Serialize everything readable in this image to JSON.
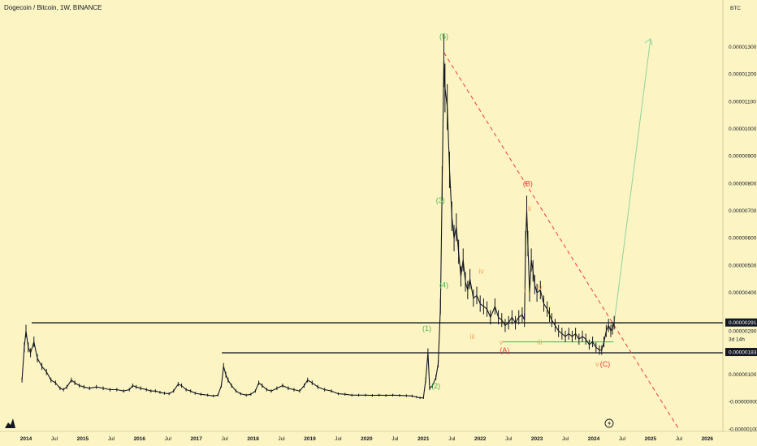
{
  "header": {
    "title": "Dogecoin / Bitcoin, 1W, BINANCE",
    "scale_label": "BTC"
  },
  "colors": {
    "background": "#fcf5c3",
    "candle": "#131722",
    "green": "#4caf50",
    "green_light": "#8fd19e",
    "red": "#ef3b3b",
    "orange": "#f4a261"
  },
  "chart_data": {
    "type": "line",
    "title": "Dogecoin / Bitcoin, 1W, BINANCE",
    "ylabel": "BTC",
    "ylim": [
      -1e-06,
      1.38e-05
    ],
    "y_ticks": [
      "0.00001300",
      "0.00001200",
      "0.00001100",
      "0.00001000",
      "0.00000900",
      "0.00000800",
      "0.00000700",
      "0.00000600",
      "0.00000500",
      "0.00000400",
      "0.00000290",
      "0.00000100",
      "-0.00000000",
      "-0.00000100"
    ],
    "x_ticks": [
      {
        "label": "2014",
        "t": 2014.0,
        "bold": true
      },
      {
        "label": "Jul",
        "t": 2014.5,
        "bold": false
      },
      {
        "label": "2015",
        "t": 2015.0,
        "bold": true
      },
      {
        "label": "Jul",
        "t": 2015.5,
        "bold": false
      },
      {
        "label": "2016",
        "t": 2016.0,
        "bold": true
      },
      {
        "label": "Jul",
        "t": 2016.5,
        "bold": false
      },
      {
        "label": "2017",
        "t": 2017.0,
        "bold": true
      },
      {
        "label": "Jul",
        "t": 2017.5,
        "bold": false
      },
      {
        "label": "2018",
        "t": 2018.0,
        "bold": true
      },
      {
        "label": "Jul",
        "t": 2018.5,
        "bold": false
      },
      {
        "label": "2019",
        "t": 2019.0,
        "bold": true
      },
      {
        "label": "Jul",
        "t": 2019.5,
        "bold": false
      },
      {
        "label": "2020",
        "t": 2020.0,
        "bold": true
      },
      {
        "label": "Jul",
        "t": 2020.5,
        "bold": false
      },
      {
        "label": "2021",
        "t": 2021.0,
        "bold": true
      },
      {
        "label": "Jul",
        "t": 2021.5,
        "bold": false
      },
      {
        "label": "2022",
        "t": 2022.0,
        "bold": true
      },
      {
        "label": "Jul",
        "t": 2022.5,
        "bold": false
      },
      {
        "label": "2023",
        "t": 2023.0,
        "bold": true
      },
      {
        "label": "Jul",
        "t": 2023.5,
        "bold": false
      },
      {
        "label": "2024",
        "t": 2024.0,
        "bold": true
      },
      {
        "label": "Jul",
        "t": 2024.5,
        "bold": false
      },
      {
        "label": "2025",
        "t": 2025.0,
        "bold": true
      },
      {
        "label": "Jul",
        "t": 2025.5,
        "bold": false
      },
      {
        "label": "2026",
        "t": 2026.0,
        "bold": true
      }
    ],
    "series": [
      {
        "points": [
          [
            2013.93,
            8e-07
          ],
          [
            2013.97,
            2e-06
          ],
          [
            2014.0,
            2.6e-06
          ],
          [
            2014.04,
            2e-06
          ],
          [
            2014.08,
            1.8e-06
          ],
          [
            2014.14,
            2.2e-06
          ],
          [
            2014.2,
            1.6e-06
          ],
          [
            2014.28,
            1.3e-06
          ],
          [
            2014.36,
            1.1e-06
          ],
          [
            2014.44,
            8e-07
          ],
          [
            2014.52,
            7e-07
          ],
          [
            2014.6,
            5e-07
          ],
          [
            2014.66,
            4.5e-07
          ],
          [
            2014.72,
            5.5e-07
          ],
          [
            2014.8,
            8e-07
          ],
          [
            2014.86,
            7e-07
          ],
          [
            2014.94,
            6e-07
          ],
          [
            2015.02,
            5.5e-07
          ],
          [
            2015.12,
            5e-07
          ],
          [
            2015.24,
            5.5e-07
          ],
          [
            2015.36,
            5e-07
          ],
          [
            2015.48,
            4.5e-07
          ],
          [
            2015.6,
            4.5e-07
          ],
          [
            2015.72,
            4e-07
          ],
          [
            2015.82,
            4.5e-07
          ],
          [
            2015.88,
            6e-07
          ],
          [
            2015.94,
            5.5e-07
          ],
          [
            2016.02,
            5e-07
          ],
          [
            2016.12,
            4.5e-07
          ],
          [
            2016.2,
            4e-07
          ],
          [
            2016.28,
            4e-07
          ],
          [
            2016.36,
            3.5e-07
          ],
          [
            2016.44,
            3.2e-07
          ],
          [
            2016.52,
            3e-07
          ],
          [
            2016.6,
            4e-07
          ],
          [
            2016.68,
            6.5e-07
          ],
          [
            2016.74,
            6e-07
          ],
          [
            2016.82,
            4.5e-07
          ],
          [
            2016.9,
            4e-07
          ],
          [
            2016.98,
            3.2e-07
          ],
          [
            2017.08,
            2.8e-07
          ],
          [
            2017.2,
            2.5e-07
          ],
          [
            2017.3,
            2.2e-07
          ],
          [
            2017.38,
            2.5e-07
          ],
          [
            2017.44,
            6e-07
          ],
          [
            2017.48,
            1.3e-06
          ],
          [
            2017.52,
            1e-06
          ],
          [
            2017.56,
            8e-07
          ],
          [
            2017.62,
            6e-07
          ],
          [
            2017.7,
            4e-07
          ],
          [
            2017.78,
            3e-07
          ],
          [
            2017.88,
            2.5e-07
          ],
          [
            2017.96,
            2.8e-07
          ],
          [
            2018.04,
            4e-07
          ],
          [
            2018.1,
            7e-07
          ],
          [
            2018.16,
            6e-07
          ],
          [
            2018.24,
            4.5e-07
          ],
          [
            2018.32,
            4e-07
          ],
          [
            2018.42,
            5e-07
          ],
          [
            2018.52,
            6e-07
          ],
          [
            2018.62,
            5e-07
          ],
          [
            2018.72,
            4.5e-07
          ],
          [
            2018.82,
            4e-07
          ],
          [
            2018.9,
            6e-07
          ],
          [
            2018.96,
            8e-07
          ],
          [
            2019.04,
            7e-07
          ],
          [
            2019.14,
            5.5e-07
          ],
          [
            2019.26,
            4.5e-07
          ],
          [
            2019.38,
            4e-07
          ],
          [
            2019.5,
            3e-07
          ],
          [
            2019.62,
            2.8e-07
          ],
          [
            2019.74,
            2.5e-07
          ],
          [
            2019.86,
            2.5e-07
          ],
          [
            2019.98,
            2.5e-07
          ],
          [
            2020.1,
            2.4e-07
          ],
          [
            2020.22,
            2.5e-07
          ],
          [
            2020.34,
            2.4e-07
          ],
          [
            2020.46,
            2.5e-07
          ],
          [
            2020.58,
            2.4e-07
          ],
          [
            2020.7,
            2.3e-07
          ],
          [
            2020.8,
            2.2e-07
          ],
          [
            2020.88,
            1.8e-07
          ],
          [
            2020.94,
            1.5e-07
          ],
          [
            2021.0,
            1.5e-07
          ],
          [
            2021.04,
            8e-07
          ],
          [
            2021.08,
            1.8e-06
          ],
          [
            2021.11,
            5e-07
          ],
          [
            2021.16,
            6e-07
          ],
          [
            2021.22,
            9e-07
          ],
          [
            2021.26,
            1.4e-06
          ],
          [
            2021.3,
            3.5e-06
          ],
          [
            2021.33,
            8e-06
          ],
          [
            2021.36,
            1.25e-05
          ],
          [
            2021.38,
            1.15e-05
          ],
          [
            2021.42,
            1.08e-05
          ],
          [
            2021.46,
            8.5e-06
          ],
          [
            2021.5,
            6.8e-06
          ],
          [
            2021.54,
            6e-06
          ],
          [
            2021.58,
            6.4e-06
          ],
          [
            2021.62,
            5.5e-06
          ],
          [
            2021.66,
            4.6e-06
          ],
          [
            2021.7,
            5.2e-06
          ],
          [
            2021.74,
            4.4e-06
          ],
          [
            2021.78,
            4.1e-06
          ],
          [
            2021.82,
            4.5e-06
          ],
          [
            2021.88,
            3.8e-06
          ],
          [
            2021.94,
            3.9e-06
          ],
          [
            2022.0,
            3.6e-06
          ],
          [
            2022.06,
            3.5e-06
          ],
          [
            2022.12,
            3.4e-06
          ],
          [
            2022.18,
            3.1e-06
          ],
          [
            2022.26,
            3.5e-06
          ],
          [
            2022.32,
            3.1e-06
          ],
          [
            2022.38,
            3e-06
          ],
          [
            2022.44,
            2.8e-06
          ],
          [
            2022.5,
            2.9e-06
          ],
          [
            2022.56,
            3.1e-06
          ],
          [
            2022.62,
            2.9e-06
          ],
          [
            2022.68,
            3.1e-06
          ],
          [
            2022.74,
            3.2e-06
          ],
          [
            2022.78,
            3e-06
          ],
          [
            2022.8,
            5.8e-06
          ],
          [
            2022.82,
            7e-06
          ],
          [
            2022.84,
            5.8e-06
          ],
          [
            2022.87,
            4e-06
          ],
          [
            2022.9,
            5.2e-06
          ],
          [
            2022.93,
            4.8e-06
          ],
          [
            2022.96,
            4.3e-06
          ],
          [
            2023.0,
            4e-06
          ],
          [
            2023.06,
            4.1e-06
          ],
          [
            2023.12,
            3.6e-06
          ],
          [
            2023.18,
            3.4e-06
          ],
          [
            2023.22,
            3.2e-06
          ],
          [
            2023.26,
            3e-06
          ],
          [
            2023.32,
            2.8e-06
          ],
          [
            2023.38,
            2.6e-06
          ],
          [
            2023.44,
            2.5e-06
          ],
          [
            2023.5,
            2.4e-06
          ],
          [
            2023.56,
            2.5e-06
          ],
          [
            2023.62,
            2.4e-06
          ],
          [
            2023.68,
            2.5e-06
          ],
          [
            2023.74,
            2.3e-06
          ],
          [
            2023.8,
            2.4e-06
          ],
          [
            2023.86,
            2.3e-06
          ],
          [
            2023.92,
            2.1e-06
          ],
          [
            2023.98,
            2.2e-06
          ],
          [
            2024.04,
            2e-06
          ],
          [
            2024.1,
            1.9e-06
          ],
          [
            2024.14,
            1.9e-06
          ],
          [
            2024.18,
            2.2e-06
          ],
          [
            2024.22,
            2.6e-06
          ],
          [
            2024.26,
            2.8e-06
          ],
          [
            2024.3,
            2.6e-06
          ],
          [
            2024.33,
            2.7e-06
          ],
          [
            2024.36,
            2.9e-06
          ]
        ]
      }
    ],
    "wave_labels": [
      {
        "text": "(5)",
        "t": 2021.36,
        "y": 1.33e-05,
        "color": "green"
      },
      {
        "text": "(3)",
        "t": 2021.3,
        "y": 7.3e-06,
        "color": "green"
      },
      {
        "text": "(4)",
        "t": 2021.36,
        "y": 4.2e-06,
        "color": "green"
      },
      {
        "text": "(1)",
        "t": 2021.06,
        "y": 2.6e-06,
        "color": "green"
      },
      {
        "text": "(2)",
        "t": 2021.22,
        "y": 5e-07,
        "color": "green"
      },
      {
        "text": "(B)",
        "t": 2022.84,
        "y": 7.9e-06,
        "color": "red"
      },
      {
        "text": "(A)",
        "t": 2022.43,
        "y": 1.8e-06,
        "color": "red"
      },
      {
        "text": "(C)",
        "t": 2024.2,
        "y": 1.3e-06,
        "color": "red"
      },
      {
        "text": "iv",
        "t": 2022.02,
        "y": 4.7e-06,
        "color": "orange"
      },
      {
        "text": "iii",
        "t": 2021.86,
        "y": 2.3e-06,
        "color": "orange"
      },
      {
        "text": "v",
        "t": 2022.37,
        "y": 2.1e-06,
        "color": "orange"
      },
      {
        "text": "ii",
        "t": 2022.87,
        "y": 7e-06,
        "color": "orange"
      },
      {
        "text": "i",
        "t": 2022.78,
        "y": 4e-06,
        "color": "orange"
      },
      {
        "text": "iv",
        "t": 2023.05,
        "y": 4.1e-06,
        "color": "orange"
      },
      {
        "text": "iii",
        "t": 2023.05,
        "y": 2.1e-06,
        "color": "orange"
      },
      {
        "text": "v",
        "t": 2024.06,
        "y": 1.3e-06,
        "color": "orange"
      }
    ],
    "lines": [
      {
        "kind": "hline",
        "from": 2014.1,
        "y": 2.9e-06,
        "color": "black"
      },
      {
        "kind": "hline",
        "from": 2017.45,
        "y": 1.8e-06,
        "color": "black"
      },
      {
        "kind": "segment",
        "from": [
          2022.4,
          2.2e-06
        ],
        "to": [
          2024.35,
          2.2e-06
        ],
        "color": "green"
      },
      {
        "kind": "trend",
        "from": [
          2021.36,
          1.28e-05
        ],
        "to": [
          2025.5,
          -1e-06
        ],
        "color": "red",
        "dashed": true
      },
      {
        "kind": "projection",
        "from": [
          2024.36,
          2.9e-06
        ],
        "to": [
          2025.0,
          1.33e-05
        ],
        "color": "green",
        "arrow": true
      }
    ],
    "price_tags": [
      {
        "label": "0.00000291",
        "y": 2.91e-06,
        "style": "dark"
      },
      {
        "label": "0.00000290",
        "y": 2.6e-06,
        "style": "plain"
      },
      {
        "label": "3d 14h",
        "y": 2.3e-06,
        "style": "plain"
      },
      {
        "label": "0.00000183",
        "y": 1.83e-06,
        "style": "dark"
      }
    ]
  }
}
